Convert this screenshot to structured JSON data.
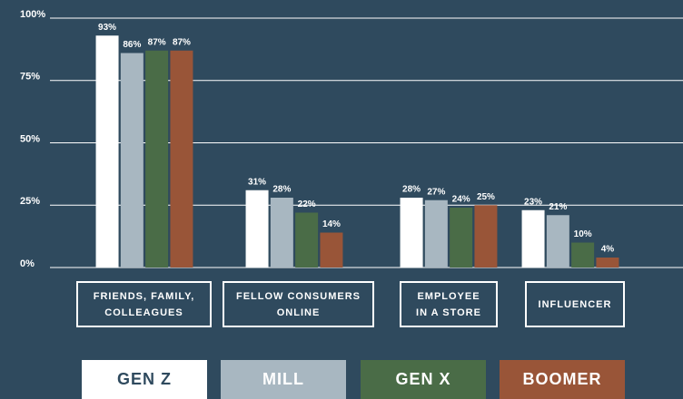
{
  "chart_data": {
    "type": "bar",
    "categories": [
      "FRIENDS, FAMILY,\nCOLLEAGUES",
      "FELLOW CONSUMERS\nONLINE",
      "EMPLOYEE\nIN A STORE",
      "INFLUENCER"
    ],
    "series": [
      {
        "name": "GEN Z",
        "color": "#ffffff",
        "values": [
          93,
          31,
          28,
          23
        ],
        "value_labels": [
          "93%",
          "31%",
          "28%",
          "23%"
        ]
      },
      {
        "name": "MILL",
        "color": "#a8b7c1",
        "values": [
          86,
          28,
          27,
          21
        ],
        "value_labels": [
          "86%",
          "28%",
          "27%",
          "21%"
        ]
      },
      {
        "name": "GEN X",
        "color": "#4a6c47",
        "values": [
          87,
          22,
          24,
          10
        ],
        "value_labels": [
          "87%",
          "22%",
          "24%",
          "10%"
        ]
      },
      {
        "name": "BOOMER",
        "color": "#995538",
        "values": [
          87,
          14,
          25,
          4
        ],
        "value_labels": [
          "87%",
          "14%",
          "25%",
          "4%"
        ]
      }
    ],
    "ylim": [
      0,
      100
    ],
    "yticks": [
      {
        "value": 0,
        "label": "0%"
      },
      {
        "value": 25,
        "label": "25%"
      },
      {
        "value": 50,
        "label": "50%"
      },
      {
        "value": 75,
        "label": "75%"
      },
      {
        "value": 100,
        "label": "100%"
      }
    ],
    "grid": true
  }
}
